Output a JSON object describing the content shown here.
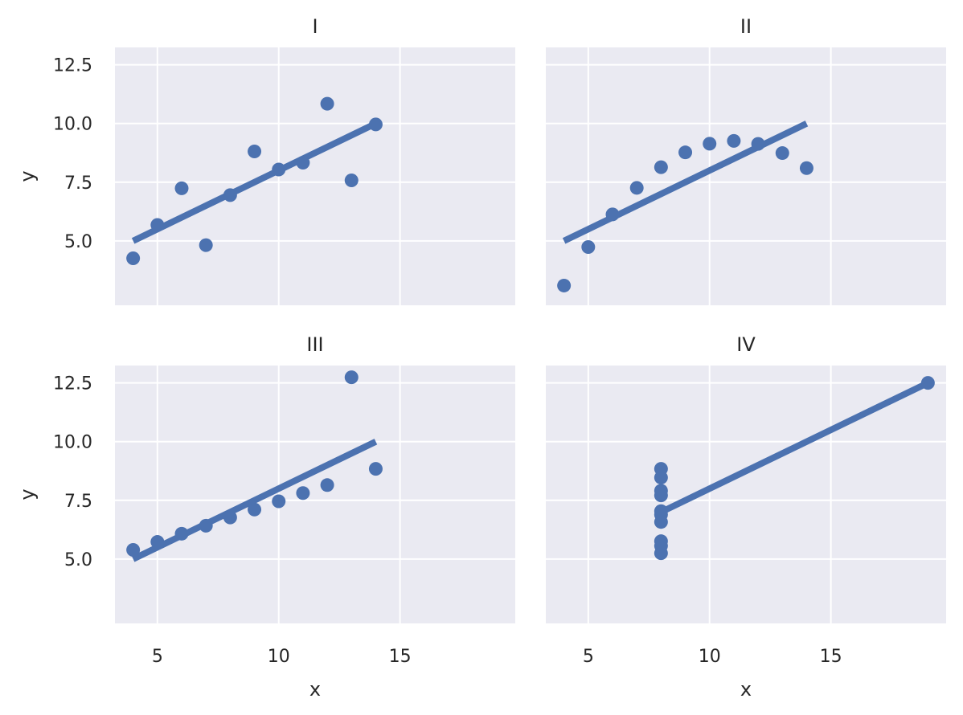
{
  "chart_data": {
    "type": "scatter",
    "colors": {
      "points": "#4c72b0",
      "background": "#eaeaf2",
      "grid": "#ffffff",
      "text": "#262626"
    },
    "grid": true,
    "xlim": [
      3.25,
      19.75
    ],
    "ylim": [
      2.26,
      13.24
    ],
    "x_ticks": [
      5,
      10,
      15
    ],
    "y_ticks": [
      5.0,
      7.5,
      10.0,
      12.5
    ],
    "y_tick_labels": [
      "5.0",
      "7.5",
      "10.0",
      "12.5"
    ],
    "xlabel": "x",
    "ylabel": "y",
    "panels": [
      {
        "title": "I",
        "x": [
          10,
          8,
          13,
          9,
          11,
          14,
          6,
          4,
          12,
          7,
          5
        ],
        "y": [
          8.04,
          6.95,
          7.58,
          8.81,
          8.33,
          9.96,
          7.24,
          4.26,
          10.84,
          4.82,
          5.68
        ],
        "fit": {
          "x": [
            4,
            14
          ],
          "y": [
            5.0,
            10.0
          ]
        }
      },
      {
        "title": "II",
        "x": [
          10,
          8,
          13,
          9,
          11,
          14,
          6,
          4,
          12,
          7,
          5
        ],
        "y": [
          9.14,
          8.14,
          8.74,
          8.77,
          9.26,
          8.1,
          6.13,
          3.1,
          9.13,
          7.26,
          4.74
        ],
        "fit": {
          "x": [
            4,
            14
          ],
          "y": [
            5.0,
            10.0
          ]
        }
      },
      {
        "title": "III",
        "x": [
          10,
          8,
          13,
          9,
          11,
          14,
          6,
          4,
          12,
          7,
          5
        ],
        "y": [
          7.46,
          6.77,
          12.74,
          7.11,
          7.81,
          8.84,
          6.08,
          5.39,
          8.15,
          6.42,
          5.73
        ],
        "fit": {
          "x": [
            4,
            14
          ],
          "y": [
            5.0,
            10.0
          ]
        }
      },
      {
        "title": "IV",
        "x": [
          8,
          8,
          8,
          8,
          8,
          8,
          8,
          19,
          8,
          8,
          8
        ],
        "y": [
          6.58,
          5.76,
          7.71,
          8.84,
          8.47,
          7.04,
          5.25,
          12.5,
          5.56,
          7.91,
          6.89
        ],
        "fit": {
          "x": [
            8,
            19
          ],
          "y": [
            7.0,
            12.5
          ]
        }
      }
    ]
  }
}
